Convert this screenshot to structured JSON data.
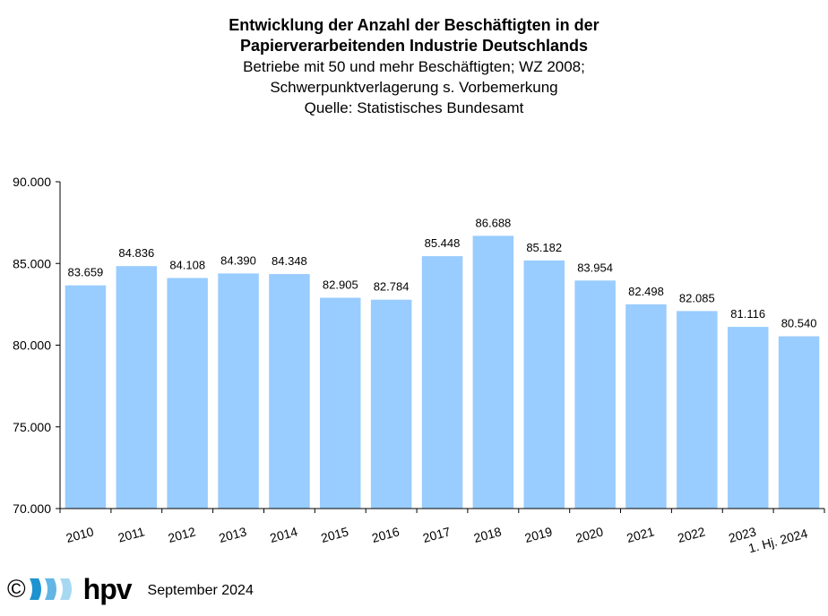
{
  "chart_data": {
    "type": "bar",
    "title_lines": [
      "Entwicklung der Anzahl der Beschäftigten in der",
      "Papierverarbeitenden Industrie Deutschlands"
    ],
    "subtitle_lines": [
      "Betriebe mit 50 und mehr Beschäftigten; WZ 2008;",
      "Schwerpunktverlagerung s. Vorbemerkung",
      "Quelle: Statistisches Bundesamt"
    ],
    "categories": [
      "2010",
      "2011",
      "2012",
      "2013",
      "2014",
      "2015",
      "2016",
      "2017",
      "2018",
      "2019",
      "2020",
      "2021",
      "2022",
      "2023",
      "1. Hj. 2024"
    ],
    "values": [
      83659,
      84836,
      84108,
      84390,
      84348,
      82905,
      82784,
      85448,
      86688,
      85182,
      83954,
      82498,
      82085,
      81116,
      80540
    ],
    "data_labels": [
      "83.659",
      "84.836",
      "84.108",
      "84.390",
      "84.348",
      "82.905",
      "82.784",
      "85.448",
      "86.688",
      "85.182",
      "83.954",
      "82.498",
      "82.085",
      "81.116",
      "80.540"
    ],
    "y_ticks": [
      70000,
      75000,
      80000,
      85000,
      90000
    ],
    "y_tick_labels": [
      "70.000",
      "75.000",
      "80.000",
      "85.000",
      "90.000"
    ],
    "ylim": [
      70000,
      90000
    ],
    "xlabel": "",
    "ylabel": "",
    "grid": false,
    "bar_color": "#99ccff"
  },
  "footer": {
    "copyright_symbol": "©",
    "logo_text": "hpv",
    "logo_colors": [
      "#1e93d0",
      "#63b6e4",
      "#a6d8f2"
    ],
    "logo_icon": "wave-stripes-logo",
    "date": "September 2024"
  }
}
